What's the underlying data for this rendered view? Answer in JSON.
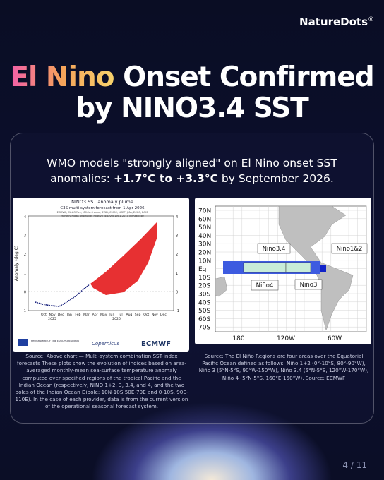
{
  "brand": {
    "name": "NatureDots",
    "mark": "®"
  },
  "title": {
    "highlight": "El Nino",
    "line1_rest": "Onset Confirmed",
    "line2": "by NINO3.4 SST"
  },
  "subtitle": {
    "lead": "WMO models \"strongly aligned\" on El Nino onset SST anomalies:",
    "range": "+1.7°C to +3.3°C",
    "tail": "by September 2026."
  },
  "plume_figure": {
    "title": "NINO3 SST anomaly plume",
    "subtitle": "C3S multi-system forecast from 1 Apr 2026",
    "providers": "ECMWF, Met Office, Météo-France, DWD, CMCC, NCEP, JMA, ECCC, BOM",
    "note": "Monthly mean anomalies relative to ERA5 1981-2010 climatology",
    "y_label": "Anomaly (deg C)",
    "yticks": [
      "4",
      "3",
      "2",
      "1",
      "0",
      "-1"
    ],
    "months": [
      "Oct",
      "Nov",
      "Dec",
      "Jan",
      "Feb",
      "Mar",
      "Apr",
      "May",
      "Jun",
      "Jul",
      "Aug",
      "Sep",
      "Oct",
      "Nov",
      "Dec"
    ],
    "years": [
      "2025",
      "2026"
    ],
    "logos": {
      "eu": "PROGRAMME OF THE EUROPEAN UNION",
      "copernicus": "Copernicus",
      "ecmwf": "ECMWF"
    }
  },
  "map_figure": {
    "lat_labels": [
      "70N",
      "60N",
      "50N",
      "40N",
      "30N",
      "20N",
      "10N",
      "Eq",
      "10S",
      "20S",
      "30S",
      "40S",
      "50S",
      "60S",
      "70S"
    ],
    "lon_labels": [
      "180",
      "120W",
      "60W"
    ],
    "regions": {
      "nino34": "Niño3.4",
      "nino12": "Niño1&2",
      "nino4": "Niño4",
      "nino3": "Niño3"
    }
  },
  "captions": {
    "left": "Source: Above chart — Multi-system combination SST-index forecasts These plots show the evolution of indices based on area-averaged monthly-mean sea-surface temperature anomaly computed over specified regions of the tropical Pacific and the Indian Ocean (respectively, NINO 1+2, 3, 3.4, and 4, and the two poles of the Indian Ocean Dipole: 10N-10S,50E-70E and 0-10S, 90E-110E). In the case of each provider, data is from the current version of the operational seasonal forecast system.",
    "right": "Source: The El Niño Regions are four areas over the Equatorial Pacific Ocean defined as follows: Niño 1+2 (0°-10°S, 80°-90°W), Niño 3 (5°N-5°S, 90°W-150°W), Niño 3.4 (5°N-5°S, 120°W-170°W), Niño 4 (5°N-5°S, 160°E-150°W). Source: ECMWF"
  },
  "pagination": "4 / 11"
}
